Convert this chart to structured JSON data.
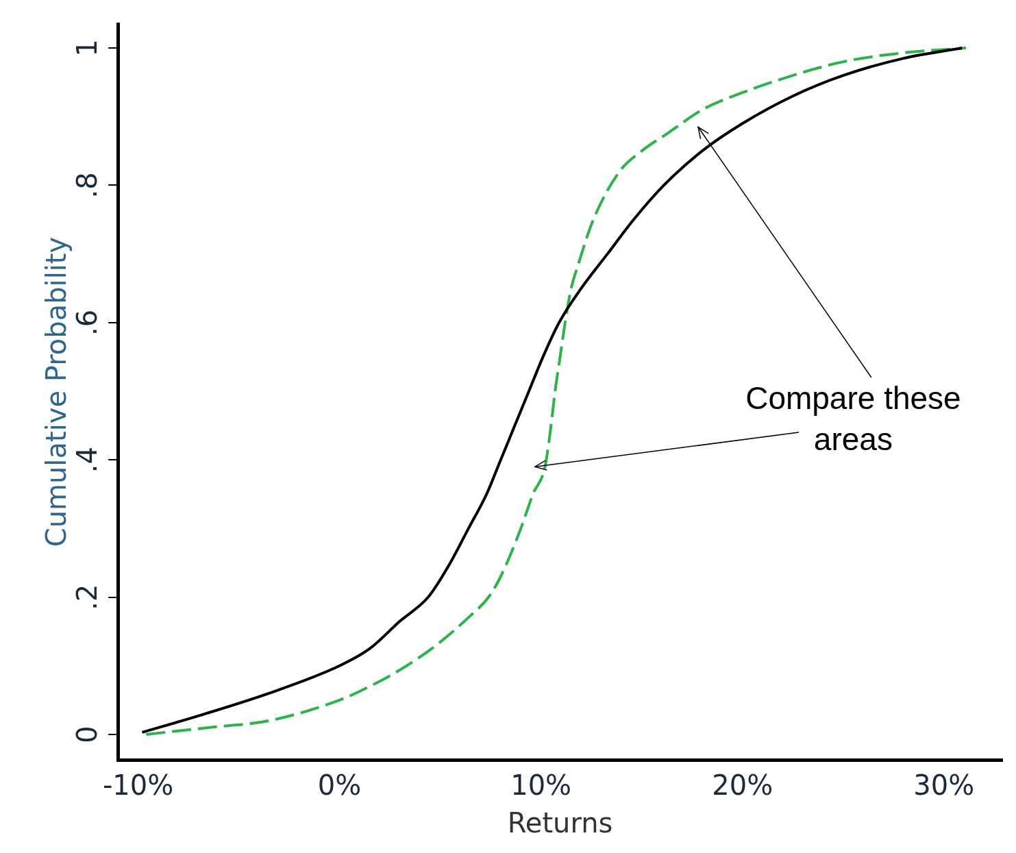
{
  "chart_data": {
    "type": "line",
    "xlabel": "Returns",
    "ylabel": "Cumulative Probability",
    "xlim": [
      -11,
      32.9
    ],
    "ylim": [
      -0.037,
      1.035
    ],
    "xticks": [
      {
        "value": -10,
        "label": "-10%"
      },
      {
        "value": 0,
        "label": "0%"
      },
      {
        "value": 10,
        "label": "10%"
      },
      {
        "value": 20,
        "label": "20%"
      },
      {
        "value": 30,
        "label": "30%"
      }
    ],
    "yticks": [
      0,
      {
        "value": 0.2,
        "label": ".2"
      },
      {
        "value": 0.4,
        "label": ".4"
      },
      {
        "value": 0.6,
        "label": ".6"
      },
      {
        "value": 0.8,
        "label": ".8"
      },
      1
    ],
    "grid": false,
    "legend": false,
    "marker": "none",
    "series": [
      {
        "color": "#000000",
        "line_style": "solid",
        "x": [
          -9.8,
          -6.9,
          -3.5,
          0,
          1.5,
          3,
          4.4,
          5.4,
          6.4,
          7.3,
          8,
          8.7,
          9.4,
          10.1,
          10.9,
          12,
          13.3,
          14.6,
          16.1,
          18,
          20,
          22.5,
          25,
          28,
          30.9
        ],
        "values": [
          0.003,
          0.028,
          0.06,
          0.1,
          0.125,
          0.165,
          0.2,
          0.245,
          0.3,
          0.35,
          0.4,
          0.45,
          0.5,
          0.55,
          0.6,
          0.65,
          0.7,
          0.75,
          0.8,
          0.85,
          0.89,
          0.93,
          0.96,
          0.985,
          1
        ]
      },
      {
        "color": "#2db34a",
        "line_style": "dashed",
        "x": [
          -9.6,
          -6.5,
          -3.5,
          0,
          1.5,
          3,
          4.8,
          6.5,
          7.4,
          8,
          9,
          9.6,
          10.2,
          10.5,
          10.7,
          10.95,
          11.2,
          11.5,
          11.8,
          12.6,
          13.9,
          15,
          16.3,
          18,
          20,
          22.5,
          25,
          28,
          31.1
        ],
        "values": [
          0,
          0.01,
          0.02,
          0.05,
          0.07,
          0.094,
          0.13,
          0.173,
          0.2,
          0.23,
          0.3,
          0.35,
          0.39,
          0.45,
          0.5,
          0.55,
          0.6,
          0.65,
          0.68,
          0.75,
          0.82,
          0.85,
          0.876,
          0.91,
          0.935,
          0.96,
          0.98,
          0.993,
          1
        ]
      }
    ],
    "annotations": [
      "Compare these areas"
    ]
  }
}
